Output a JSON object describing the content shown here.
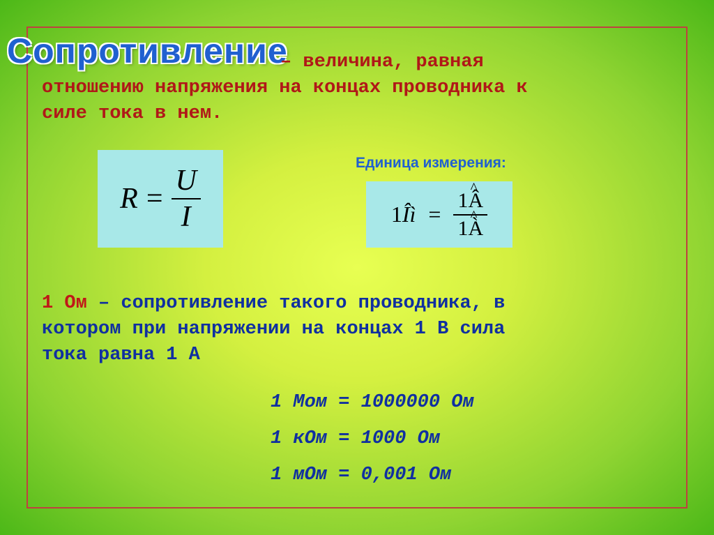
{
  "title": "Сопротивление",
  "definition": {
    "part1": "– величина, равная",
    "part2": "отношению напряжения на концах проводника к",
    "part3": "силе тока в нем."
  },
  "formula_main": {
    "lhs": "R",
    "eq": "=",
    "num": "U",
    "den": "I",
    "bg_color": "#a8e8e8",
    "fontsize": 42
  },
  "unit_label": "Единица измерения:",
  "formula_unit": {
    "lhs_num": "1",
    "lhs_sym": "Îì",
    "eq": "=",
    "num_n": "1",
    "num_s": "Â",
    "den_n": "1",
    "den_s": "À",
    "bg_color": "#a8e8e8",
    "fontsize": 32
  },
  "ohm_definition": {
    "l1_red": "1 Ом",
    "l1_rest": " – сопротивление такого проводника, в",
    "l2": "котором при напряжении на концах 1 В сила",
    "l3": "тока равна 1 А"
  },
  "conversions": {
    "c1": "1 Мом = 1000000 Ом",
    "c2": "1 кОм = 1000 Ом",
    "c3": "1 мОм = 0,001 Ом"
  },
  "colors": {
    "title": "#2060d0",
    "definition_text": "#b01818",
    "body_text": "#1030a0",
    "border": "#c04040",
    "formula_bg": "#a8e8e8"
  },
  "typography": {
    "title_fontsize": 50,
    "body_fontsize": 27,
    "unit_label_fontsize": 21,
    "body_font": "Courier New",
    "title_font": "Arial",
    "formula_font": "Times New Roman"
  }
}
